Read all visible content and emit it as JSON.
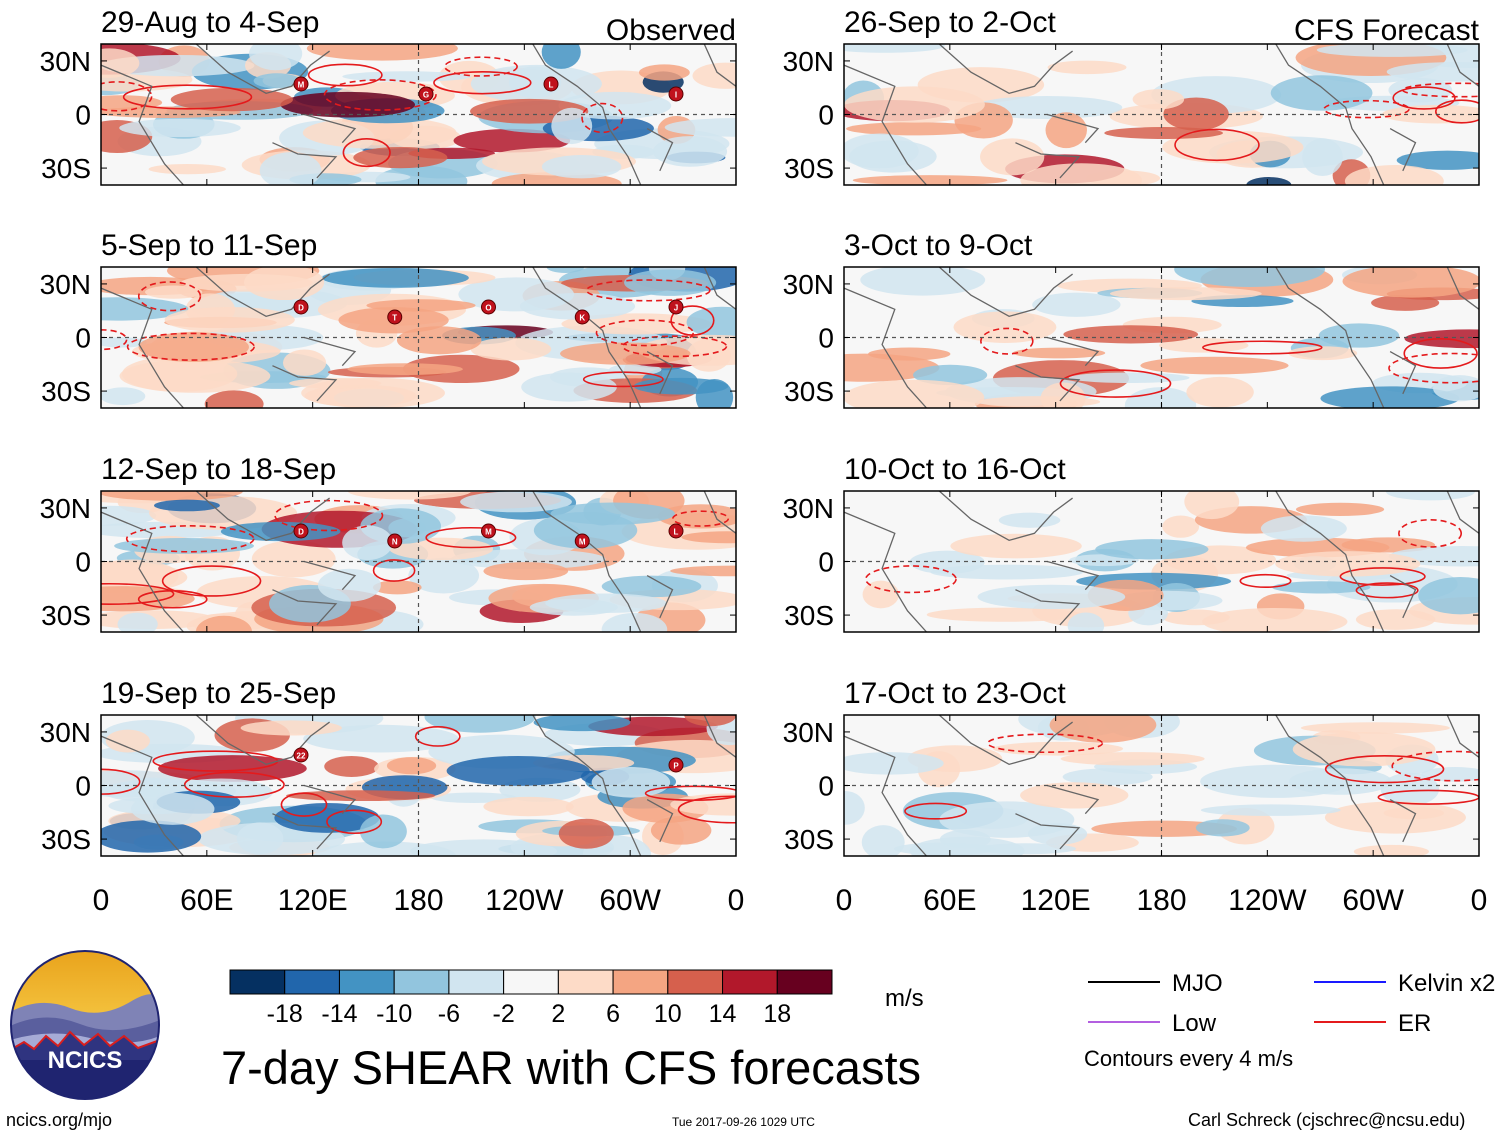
{
  "figure": {
    "title": "7-day SHEAR with CFS forecasts",
    "footer_left": "ncics.org/mjo",
    "footer_center": "Tue 2017-09-26 1029 UTC",
    "footer_right": "Carl Schreck (cjschrec@ncsu.edu)",
    "logo_text": "NCICS"
  },
  "chart_data": {
    "type": "heatmap",
    "panel_group_labels": {
      "left": "Observed",
      "right": "CFS Forecast"
    },
    "xtick_labels": [
      "0",
      "60E",
      "120E",
      "180",
      "120W",
      "60W",
      "0"
    ],
    "ytick_labels": [
      "30N",
      "0",
      "30S"
    ],
    "panels": [
      {
        "column": "left",
        "title": "29-Aug to 4-Sep"
      },
      {
        "column": "left",
        "title": "5-Sep to 11-Sep"
      },
      {
        "column": "left",
        "title": "12-Sep to 18-Sep"
      },
      {
        "column": "left",
        "title": "19-Sep to 25-Sep"
      },
      {
        "column": "right",
        "title": "26-Sep to 2-Oct"
      },
      {
        "column": "right",
        "title": "3-Oct to 9-Oct"
      },
      {
        "column": "right",
        "title": "10-Oct to 16-Oct"
      },
      {
        "column": "right",
        "title": "17-Oct to 23-Oct"
      }
    ],
    "colorbar": {
      "units": "m/s",
      "tick_labels": [
        "-18",
        "-14",
        "-10",
        "-6",
        "-2",
        "2",
        "6",
        "10",
        "14",
        "18"
      ],
      "colors": [
        "#053061",
        "#2166ac",
        "#4393c3",
        "#92c5de",
        "#d1e5f0",
        "#f7f7f7",
        "#fddbc7",
        "#f4a582",
        "#d6604d",
        "#b2182b",
        "#67001f"
      ]
    },
    "legend": [
      {
        "label": "MJO",
        "color": "#000000"
      },
      {
        "label": "Kelvin x2",
        "color": "#1a1aff"
      },
      {
        "label": "Low",
        "color": "#b35fe0"
      },
      {
        "label": "ER",
        "color": "#e41a1c"
      }
    ],
    "contour_note": "Contours every 4 m/s",
    "storms": [
      {
        "panel": 0,
        "letters": [
          "M",
          "G",
          "L",
          "I"
        ]
      },
      {
        "panel": 1,
        "letters": [
          "D",
          "T",
          "O",
          "K",
          "J"
        ]
      },
      {
        "panel": 2,
        "letters": [
          "D",
          "N",
          "M",
          "M",
          "L"
        ]
      },
      {
        "panel": 3,
        "letters": [
          "22",
          "P"
        ]
      }
    ]
  }
}
